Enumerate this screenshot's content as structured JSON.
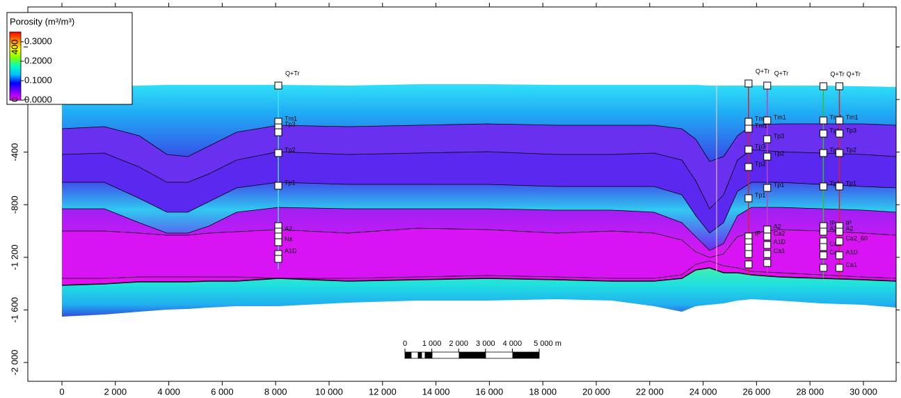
{
  "chart_data": {
    "type": "cross-section",
    "xlim": [
      -1276,
      31224
    ],
    "ylim": [
      -2143,
      704
    ],
    "xticks": [
      0,
      {
        "value": 2000,
        "label": "2 000"
      },
      {
        "value": 4000,
        "label": "4 000"
      },
      {
        "value": 6000,
        "label": "6 000"
      },
      {
        "value": 8000,
        "label": "8 000"
      },
      {
        "value": 10000,
        "label": "10 000"
      },
      {
        "value": 12000,
        "label": "12 000"
      },
      {
        "value": 14000,
        "label": "14 000"
      },
      {
        "value": 16000,
        "label": "16 000"
      },
      {
        "value": 18000,
        "label": "18 000"
      },
      {
        "value": 20000,
        "label": "20 000"
      },
      {
        "value": 22000,
        "label": "22 000"
      },
      {
        "value": 24000,
        "label": "24 000"
      },
      {
        "value": 26000,
        "label": "26 000"
      },
      {
        "value": 28000,
        "label": "28 000"
      },
      {
        "value": 30000,
        "label": "30 000"
      }
    ],
    "yticks": [
      {
        "value": -2000,
        "label": "-2 000"
      },
      {
        "value": -1600,
        "label": "-1 600"
      },
      {
        "value": -1200,
        "label": "-1 200"
      },
      -800,
      -400,
      0,
      400
    ],
    "legend": {
      "title": "Porosity (m³/m³)",
      "clim": [
        0,
        0.35
      ],
      "colormap": [
        "#ff00ff",
        "#8000ff",
        "#0000ff",
        "#00c0ff",
        "#00ffc0",
        "#80ff00",
        "#ffff00",
        "#ff8000",
        "#ff0000"
      ],
      "ticks": [
        {
          "value": 0,
          "label": "0.0000"
        },
        {
          "value": 0.1,
          "label": "0.1000"
        },
        {
          "value": 0.2,
          "label": "0.2000"
        },
        {
          "value": 0.3,
          "label": "0.3000"
        }
      ]
    },
    "scale_bar": {
      "labels": [
        "0",
        "1 000",
        "2 000",
        "3 000",
        "4 000",
        "5 000 m"
      ]
    },
    "wells": [
      {
        "x": 8100,
        "color": "#40e0ff",
        "tops": [
          {
            "label": "Q+Tr",
            "depth": 106
          },
          {
            "label": "Tm1",
            "depth": -169
          },
          {
            "label": "Tp3",
            "depth": -212
          },
          {
            "label": null,
            "depth": -249
          },
          {
            "label": "Tp2",
            "depth": -407
          },
          {
            "label": "Tp1",
            "depth": -656
          },
          {
            "label": null,
            "depth": -963
          },
          {
            "label": "A2",
            "depth": -1005
          },
          {
            "label": null,
            "depth": -1042
          },
          {
            "label": "Na",
            "depth": -1085
          },
          {
            "label": "A1D",
            "depth": -1175
          },
          {
            "label": null,
            "depth": -1212
          }
        ]
      },
      {
        "x": 25700,
        "color": "#e02020",
        "tops": [
          {
            "label": "Q+Tr",
            "depth": 122
          },
          {
            "label": "Tm2",
            "depth": -169
          },
          {
            "label": "Tm1",
            "depth": -222
          },
          {
            "label": "Tp3",
            "depth": -381
          },
          {
            "label": "Tp2",
            "depth": -513
          },
          {
            "label": "Tp1",
            "depth": -751
          },
          {
            "label": "IP",
            "depth": -1042
          },
          {
            "label": null,
            "depth": -1085
          },
          {
            "label": null,
            "depth": -1127
          },
          {
            "label": null,
            "depth": -1175
          },
          {
            "label": null,
            "depth": -1254
          }
        ]
      },
      {
        "x": 26400,
        "color": "#c040c0",
        "tops": [
          {
            "label": "Q+Tr",
            "depth": 106
          },
          {
            "label": "Tm1",
            "depth": -159
          },
          {
            "label": "Tp3",
            "depth": -302
          },
          {
            "label": "Tp2",
            "depth": -434
          },
          {
            "label": "Tp1",
            "depth": -672
          },
          {
            "label": "A2",
            "depth": -989
          },
          {
            "label": "Ca2",
            "depth": -1042
          },
          {
            "label": "A1D",
            "depth": -1106
          },
          {
            "label": "Ca1",
            "depth": -1175
          },
          {
            "label": null,
            "depth": -1243
          }
        ]
      },
      {
        "x": 28500,
        "color": "#30c030",
        "tops": [
          {
            "label": "Q+Tr",
            "depth": 101
          },
          {
            "label": "Tm1",
            "depth": -159
          },
          {
            "label": "Tp3",
            "depth": -259
          },
          {
            "label": "Tp2",
            "depth": -407
          },
          {
            "label": "Tp1",
            "depth": -661
          },
          {
            "label": "IP",
            "depth": -963
          },
          {
            "label": "A2",
            "depth": -1005
          },
          {
            "label": null,
            "depth": -1079
          },
          {
            "label": "Ca2",
            "depth": -1122
          },
          {
            "label": "Ca1",
            "depth": -1185
          },
          {
            "label": null,
            "depth": -1280
          }
        ]
      },
      {
        "x": 29100,
        "color": "#e02020",
        "tops": [
          {
            "label": "Q+Tr",
            "depth": 101
          },
          {
            "label": "Tm1",
            "depth": -159
          },
          {
            "label": "Tp3",
            "depth": -259
          },
          {
            "label": "Tp2",
            "depth": -407
          },
          {
            "label": "Tp1",
            "depth": -661
          },
          {
            "label": "IP",
            "depth": -963
          },
          {
            "label": "A2",
            "depth": -1005
          },
          {
            "label": "Ca2_60",
            "depth": -1079
          },
          {
            "label": "A1D",
            "depth": -1185
          },
          {
            "label": "Ca1",
            "depth": -1280
          }
        ]
      }
    ]
  }
}
